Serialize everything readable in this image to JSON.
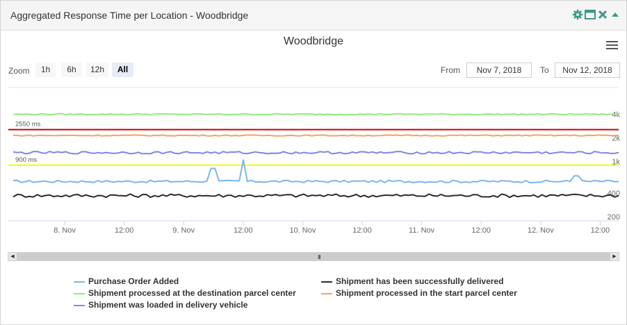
{
  "panel": {
    "title": "Aggregated Response Time per Location - Woodbridge",
    "icons": [
      "gear-icon",
      "maximize-icon",
      "close-icon",
      "collapse-icon"
    ]
  },
  "chart_title": "Woodbridge",
  "zoom": {
    "label": "Zoom",
    "buttons": [
      "1h",
      "6h",
      "12h",
      "All"
    ],
    "active": "All"
  },
  "range": {
    "from_label": "From",
    "from_value": "Nov 7, 2018",
    "to_label": "To",
    "to_value": "Nov 12, 2018"
  },
  "chart_data": {
    "type": "line",
    "y_scale": "log",
    "y_ticks": [
      {
        "value": 4000,
        "label": "4k"
      },
      {
        "value": 2000,
        "label": "2k"
      },
      {
        "value": 1000,
        "label": "1k"
      },
      {
        "value": 400,
        "label": "400"
      },
      {
        "value": 200,
        "label": "200"
      }
    ],
    "x_ticks": [
      "8. Nov",
      "12:00",
      "9. Nov",
      "12:00",
      "10. Nov",
      "12:00",
      "11. Nov",
      "12:00",
      "12. Nov",
      "12:00"
    ],
    "thresholds": [
      {
        "value": 2550,
        "label": "2550 ms",
        "color": "#cc0000"
      },
      {
        "value": 900,
        "label": "900 ms",
        "color": "#eeff00"
      }
    ],
    "series": [
      {
        "name": "Purchase Order Added",
        "color": "#7cb5ec",
        "base": 560,
        "spikes": [
          [
            0.33,
            820
          ],
          [
            0.378,
            1050
          ],
          [
            0.93,
            660
          ]
        ]
      },
      {
        "name": "Shipment has been successfully delivered",
        "color": "#2b2b2b",
        "base": 370,
        "spikes": []
      },
      {
        "name": "Shipment processed at the destination parcel center",
        "color": "#90ed7d",
        "base": 4000,
        "spikes": []
      },
      {
        "name": "Shipment processed in the start parcel center",
        "color": "#f7a35c",
        "base": 2150,
        "spikes": []
      },
      {
        "name": "Shipment was loaded in delivery vehicle",
        "color": "#8085e9",
        "base": 1300,
        "spikes": []
      }
    ]
  },
  "navigator": {
    "grip": "III"
  }
}
